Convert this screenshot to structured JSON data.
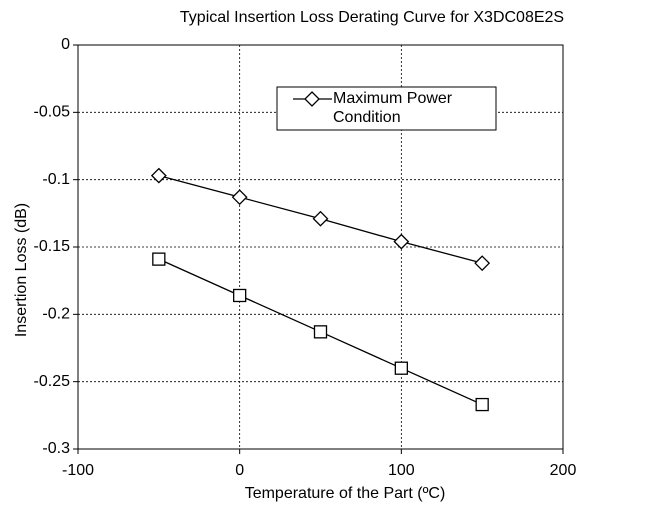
{
  "chart_data": {
    "type": "line",
    "title": "Typical Insertion Loss Derating Curve for X3DC08E2S",
    "xlabel": "Temperature of the Part (ºC)",
    "ylabel": "Insertion Loss (dB)",
    "x": [
      -50,
      0,
      50,
      100,
      150
    ],
    "series": [
      {
        "name": "Maximum Power Condition",
        "color": "#000000",
        "marker": "diamond",
        "values": [
          -0.097,
          -0.113,
          -0.129,
          -0.146,
          -0.162
        ]
      },
      {
        "color": "#000000",
        "marker": "square",
        "values": [
          -0.159,
          -0.186,
          -0.213,
          -0.24,
          -0.267
        ]
      }
    ],
    "xlim": [
      -100,
      200
    ],
    "xticks": [
      -100,
      0,
      100,
      200
    ],
    "ylim": [
      -0.3,
      0
    ],
    "yticks": [
      0,
      -0.05,
      -0.1,
      -0.15,
      -0.2,
      -0.25,
      -0.3
    ],
    "grid": true
  }
}
